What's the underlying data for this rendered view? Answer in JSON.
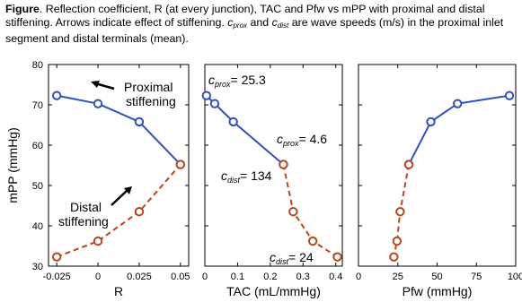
{
  "caption": {
    "bold": "Figure",
    "part1": ". Reflection coefficient, R (at every junction), TAC and Pfw vs mPP with proximal and distal stiffening. Arrows indicate effect of stiffening. ",
    "c1": "c",
    "c1sub": "prox",
    "and": " and ",
    "c2": "c",
    "c2sub": "dist",
    "part2": " are wave speeds (m/s) in the proximal inlet segment and distal terminals (mean)."
  },
  "colors": {
    "proximal": "#2f4fbf",
    "distal": "#b9451c"
  },
  "chart_data": [
    {
      "type": "line",
      "xlabel": "R",
      "ylabel": "mPP (mmHg)",
      "xlim": [
        -0.03,
        0.055
      ],
      "ylim": [
        30,
        80
      ],
      "xticks": [
        -0.025,
        0,
        0.025,
        0.05
      ],
      "xtick_labels": [
        "-0.025",
        "0",
        "0.025",
        "0.05"
      ],
      "yticks": [
        30,
        40,
        50,
        60,
        70,
        80
      ],
      "ytick_labels": [
        "30",
        "40",
        "50",
        "60",
        "70",
        "80"
      ],
      "series": [
        {
          "x": [
            -0.025,
            0,
            0.025,
            0.05
          ],
          "y": [
            72.3,
            70.3,
            65.8,
            55.2
          ]
        },
        {
          "x": [
            -0.025,
            0,
            0.025,
            0.05
          ],
          "y": [
            32.3,
            36.2,
            43.5,
            55.2
          ]
        }
      ],
      "annotations": [
        {
          "text": "Proximal",
          "text2": "stiffening"
        },
        {
          "text": "Distal",
          "text2": "stiffening"
        }
      ]
    },
    {
      "type": "line",
      "xlabel": "TAC (mL/mmHg)",
      "xlim": [
        0,
        0.42
      ],
      "ylim": [
        30,
        80
      ],
      "xticks": [
        0,
        0.1,
        0.2,
        0.3,
        0.4
      ],
      "xtick_labels": [
        "0",
        "0.1",
        "0.2",
        "0.3",
        "0.4"
      ],
      "series": [
        {
          "x": [
            0.005,
            0.03,
            0.087,
            0.24
          ],
          "y": [
            72.3,
            70.3,
            65.8,
            55.2
          ]
        },
        {
          "x": [
            0.24,
            0.27,
            0.33,
            0.405
          ],
          "y": [
            55.2,
            43.5,
            36.2,
            32.3
          ]
        }
      ],
      "annotations": [
        {
          "c": "c",
          "sub": "prox",
          "value": "= 25.3"
        },
        {
          "c": "c",
          "sub": "prox",
          "value": "= 4.6"
        },
        {
          "c": "c",
          "sub": "dist",
          "value": "= 134"
        },
        {
          "c": "c",
          "sub": "dist",
          "value": "= 24"
        }
      ]
    },
    {
      "type": "line",
      "xlabel": "Pfw (mmHg)",
      "xlim": [
        0,
        100
      ],
      "ylim": [
        30,
        80
      ],
      "xticks": [
        0,
        25,
        50,
        75,
        100
      ],
      "xtick_labels": [
        "0",
        "25",
        "50",
        "75",
        "100"
      ],
      "series": [
        {
          "x": [
            96,
            63,
            46,
            32
          ],
          "y": [
            72.3,
            70.3,
            65.8,
            55.2
          ]
        },
        {
          "x": [
            32,
            26.5,
            24.5,
            22.5
          ],
          "y": [
            55.2,
            43.5,
            36.2,
            32.3
          ]
        }
      ]
    }
  ]
}
